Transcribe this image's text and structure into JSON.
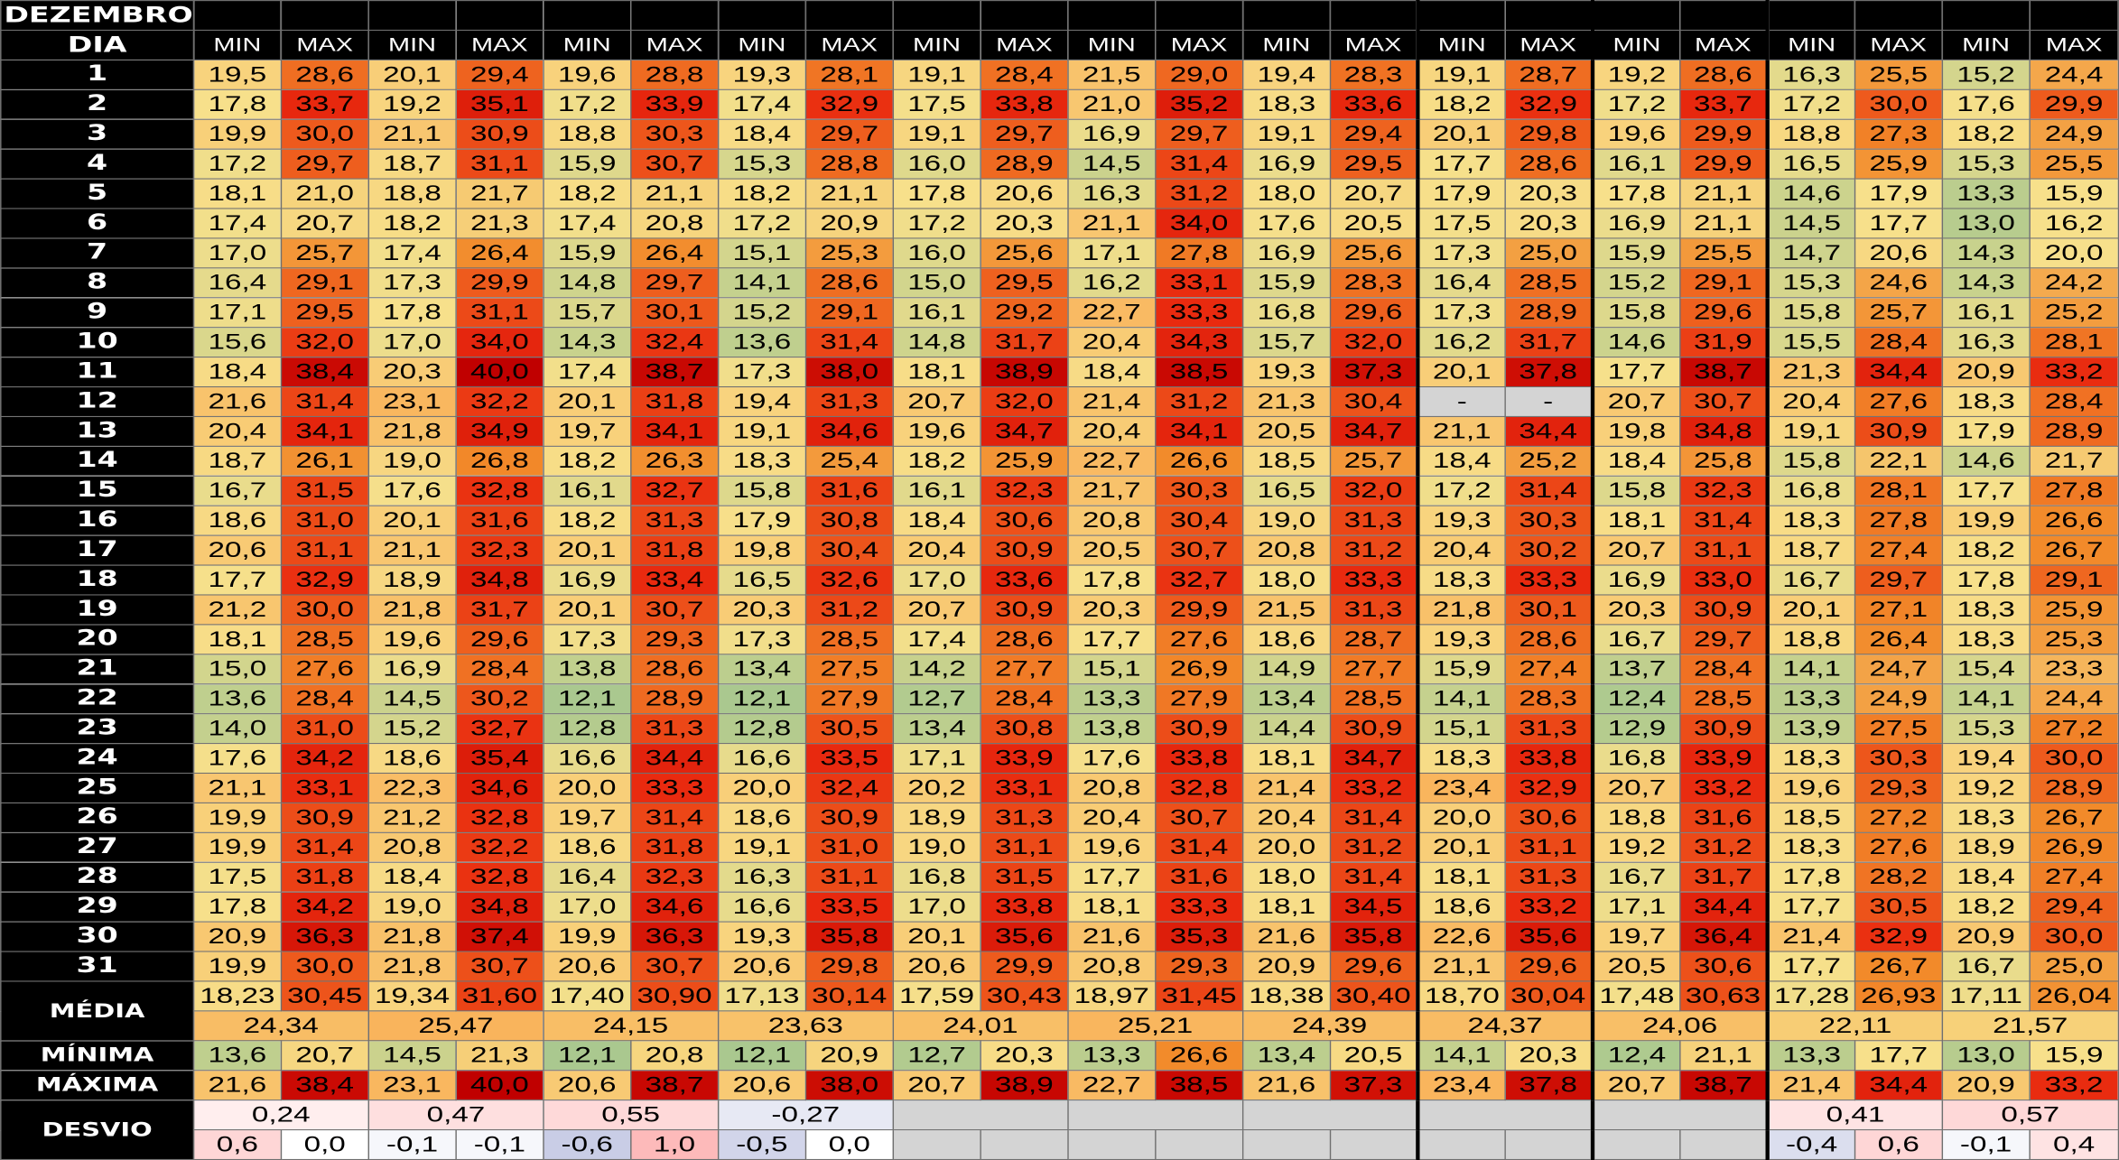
{
  "title": "DEZEMBRO",
  "day_label": "DIA",
  "min_label": "MIN",
  "max_label": "MAX",
  "media_label": "MÉDIA",
  "minima_label": "MÍNIMA",
  "maxima_label": "MÁXIMA",
  "desvio_label": "DESVIO",
  "year_count": 11,
  "rows": [
    {
      "day": "1",
      "values": [
        "19,5",
        "28,6",
        "20,1",
        "29,4",
        "19,6",
        "28,8",
        "19,3",
        "28,1",
        "19,1",
        "28,4",
        "21,5",
        "29,0",
        "19,4",
        "28,3",
        "19,1",
        "28,7",
        "19,2",
        "28,6",
        "16,3",
        "25,5",
        "15,2",
        "24,4"
      ]
    },
    {
      "day": "2",
      "values": [
        "17,8",
        "33,7",
        "19,2",
        "35,1",
        "17,2",
        "33,9",
        "17,4",
        "32,9",
        "17,5",
        "33,8",
        "21,0",
        "35,2",
        "18,3",
        "33,6",
        "18,2",
        "32,9",
        "17,2",
        "33,7",
        "17,2",
        "30,0",
        "17,6",
        "29,9"
      ]
    },
    {
      "day": "3",
      "values": [
        "19,9",
        "30,0",
        "21,1",
        "30,9",
        "18,8",
        "30,3",
        "18,4",
        "29,7",
        "19,1",
        "29,7",
        "16,9",
        "29,7",
        "19,1",
        "29,4",
        "20,1",
        "29,8",
        "19,6",
        "29,9",
        "18,8",
        "27,3",
        "18,2",
        "24,9"
      ]
    },
    {
      "day": "4",
      "values": [
        "17,2",
        "29,7",
        "18,7",
        "31,1",
        "15,9",
        "30,7",
        "15,3",
        "28,8",
        "16,0",
        "28,9",
        "14,5",
        "31,4",
        "16,9",
        "29,5",
        "17,7",
        "28,6",
        "16,1",
        "29,9",
        "16,5",
        "25,9",
        "15,3",
        "25,5"
      ]
    },
    {
      "day": "5",
      "values": [
        "18,1",
        "21,0",
        "18,8",
        "21,7",
        "18,2",
        "21,1",
        "18,2",
        "21,1",
        "17,8",
        "20,6",
        "16,3",
        "31,2",
        "18,0",
        "20,7",
        "17,9",
        "20,3",
        "17,8",
        "21,1",
        "14,6",
        "17,9",
        "13,3",
        "15,9"
      ]
    },
    {
      "day": "6",
      "values": [
        "17,4",
        "20,7",
        "18,2",
        "21,3",
        "17,4",
        "20,8",
        "17,2",
        "20,9",
        "17,2",
        "20,3",
        "21,1",
        "34,0",
        "17,6",
        "20,5",
        "17,5",
        "20,3",
        "16,9",
        "21,1",
        "14,5",
        "17,7",
        "13,0",
        "16,2"
      ]
    },
    {
      "day": "7",
      "values": [
        "17,0",
        "25,7",
        "17,4",
        "26,4",
        "15,9",
        "26,4",
        "15,1",
        "25,3",
        "16,0",
        "25,6",
        "17,1",
        "27,8",
        "16,9",
        "25,6",
        "17,3",
        "25,0",
        "15,9",
        "25,5",
        "14,7",
        "20,6",
        "14,3",
        "20,0"
      ]
    },
    {
      "day": "8",
      "values": [
        "16,4",
        "29,1",
        "17,3",
        "29,9",
        "14,8",
        "29,7",
        "14,1",
        "28,6",
        "15,0",
        "29,5",
        "16,2",
        "33,1",
        "15,9",
        "28,3",
        "16,4",
        "28,5",
        "15,2",
        "29,1",
        "15,3",
        "24,6",
        "14,3",
        "24,2"
      ]
    },
    {
      "day": "9",
      "values": [
        "17,1",
        "29,5",
        "17,8",
        "31,1",
        "15,7",
        "30,1",
        "15,2",
        "29,1",
        "16,1",
        "29,2",
        "22,7",
        "33,3",
        "16,8",
        "29,6",
        "17,3",
        "28,9",
        "15,8",
        "29,6",
        "15,8",
        "25,7",
        "16,1",
        "25,2"
      ]
    },
    {
      "day": "10",
      "values": [
        "15,6",
        "32,0",
        "17,0",
        "34,0",
        "14,3",
        "32,4",
        "13,6",
        "31,4",
        "14,8",
        "31,7",
        "20,4",
        "34,3",
        "15,7",
        "32,0",
        "16,2",
        "31,7",
        "14,6",
        "31,9",
        "15,5",
        "28,4",
        "16,3",
        "28,1"
      ]
    },
    {
      "day": "11",
      "values": [
        "18,4",
        "38,4",
        "20,3",
        "40,0",
        "17,4",
        "38,7",
        "17,3",
        "38,0",
        "18,1",
        "38,9",
        "18,4",
        "38,5",
        "19,3",
        "37,3",
        "20,1",
        "37,8",
        "17,7",
        "38,7",
        "21,3",
        "34,4",
        "20,9",
        "33,2"
      ]
    },
    {
      "day": "12",
      "values": [
        "21,6",
        "31,4",
        "23,1",
        "32,2",
        "20,1",
        "31,8",
        "19,4",
        "31,3",
        "20,7",
        "32,0",
        "21,4",
        "31,2",
        "21,3",
        "30,4",
        "-",
        "-",
        "20,7",
        "30,7",
        "20,4",
        "27,6",
        "18,3",
        "28,4"
      ]
    },
    {
      "day": "13",
      "values": [
        "20,4",
        "34,1",
        "21,8",
        "34,9",
        "19,7",
        "34,1",
        "19,1",
        "34,6",
        "19,6",
        "34,7",
        "20,4",
        "34,1",
        "20,5",
        "34,7",
        "21,1",
        "34,4",
        "19,8",
        "34,8",
        "19,1",
        "30,9",
        "17,9",
        "28,9"
      ]
    },
    {
      "day": "14",
      "values": [
        "18,7",
        "26,1",
        "19,0",
        "26,8",
        "18,2",
        "26,3",
        "18,3",
        "25,4",
        "18,2",
        "25,9",
        "22,7",
        "26,6",
        "18,5",
        "25,7",
        "18,4",
        "25,2",
        "18,4",
        "25,8",
        "15,8",
        "22,1",
        "14,6",
        "21,7"
      ]
    },
    {
      "day": "15",
      "values": [
        "16,7",
        "31,5",
        "17,6",
        "32,8",
        "16,1",
        "32,7",
        "15,8",
        "31,6",
        "16,1",
        "32,3",
        "21,7",
        "30,3",
        "16,5",
        "32,0",
        "17,2",
        "31,4",
        "15,8",
        "32,3",
        "16,8",
        "28,1",
        "17,7",
        "27,8"
      ]
    },
    {
      "day": "16",
      "values": [
        "18,6",
        "31,0",
        "20,1",
        "31,6",
        "18,2",
        "31,3",
        "17,9",
        "30,8",
        "18,4",
        "30,6",
        "20,8",
        "30,4",
        "19,0",
        "31,3",
        "19,3",
        "30,3",
        "18,1",
        "31,4",
        "18,3",
        "27,8",
        "19,9",
        "26,6"
      ]
    },
    {
      "day": "17",
      "values": [
        "20,6",
        "31,1",
        "21,1",
        "32,3",
        "20,1",
        "31,8",
        "19,8",
        "30,4",
        "20,4",
        "30,9",
        "20,5",
        "30,7",
        "20,8",
        "31,2",
        "20,4",
        "30,2",
        "20,7",
        "31,1",
        "18,7",
        "27,4",
        "18,2",
        "26,7"
      ]
    },
    {
      "day": "18",
      "values": [
        "17,7",
        "32,9",
        "18,9",
        "34,8",
        "16,9",
        "33,4",
        "16,5",
        "32,6",
        "17,0",
        "33,6",
        "17,8",
        "32,7",
        "18,0",
        "33,3",
        "18,3",
        "33,3",
        "16,9",
        "33,0",
        "16,7",
        "29,7",
        "17,8",
        "29,1"
      ]
    },
    {
      "day": "19",
      "values": [
        "21,2",
        "30,0",
        "21,8",
        "31,7",
        "20,1",
        "30,7",
        "20,3",
        "31,2",
        "20,7",
        "30,9",
        "20,3",
        "29,9",
        "21,5",
        "31,3",
        "21,8",
        "30,1",
        "20,3",
        "30,9",
        "20,1",
        "27,1",
        "18,3",
        "25,9"
      ]
    },
    {
      "day": "20",
      "values": [
        "18,1",
        "28,5",
        "19,6",
        "29,6",
        "17,3",
        "29,3",
        "17,3",
        "28,5",
        "17,4",
        "28,6",
        "17,7",
        "27,6",
        "18,6",
        "28,7",
        "19,3",
        "28,6",
        "16,7",
        "29,7",
        "18,8",
        "26,4",
        "18,3",
        "25,3"
      ]
    },
    {
      "day": "21",
      "values": [
        "15,0",
        "27,6",
        "16,9",
        "28,4",
        "13,8",
        "28,6",
        "13,4",
        "27,5",
        "14,2",
        "27,7",
        "15,1",
        "26,9",
        "14,9",
        "27,7",
        "15,9",
        "27,4",
        "13,7",
        "28,4",
        "14,1",
        "24,7",
        "15,4",
        "23,3"
      ]
    },
    {
      "day": "22",
      "values": [
        "13,6",
        "28,4",
        "14,5",
        "30,2",
        "12,1",
        "28,9",
        "12,1",
        "27,9",
        "12,7",
        "28,4",
        "13,3",
        "27,9",
        "13,4",
        "28,5",
        "14,1",
        "28,3",
        "12,4",
        "28,5",
        "13,3",
        "24,9",
        "14,1",
        "24,4"
      ]
    },
    {
      "day": "23",
      "values": [
        "14,0",
        "31,0",
        "15,2",
        "32,7",
        "12,8",
        "31,3",
        "12,8",
        "30,5",
        "13,4",
        "30,8",
        "13,8",
        "30,9",
        "14,4",
        "30,9",
        "15,1",
        "31,3",
        "12,9",
        "30,9",
        "13,9",
        "27,5",
        "15,3",
        "27,2"
      ]
    },
    {
      "day": "24",
      "values": [
        "17,6",
        "34,2",
        "18,6",
        "35,4",
        "16,6",
        "34,4",
        "16,6",
        "33,5",
        "17,1",
        "33,9",
        "17,6",
        "33,8",
        "18,1",
        "34,7",
        "18,3",
        "33,8",
        "16,8",
        "33,9",
        "18,3",
        "30,3",
        "19,4",
        "30,0"
      ]
    },
    {
      "day": "25",
      "values": [
        "21,1",
        "33,1",
        "22,3",
        "34,6",
        "20,0",
        "33,3",
        "20,0",
        "32,4",
        "20,2",
        "33,1",
        "20,8",
        "32,8",
        "21,4",
        "33,2",
        "23,4",
        "32,9",
        "20,7",
        "33,2",
        "19,6",
        "29,3",
        "19,2",
        "28,9"
      ]
    },
    {
      "day": "26",
      "values": [
        "19,9",
        "30,9",
        "21,2",
        "32,8",
        "19,7",
        "31,4",
        "18,6",
        "30,9",
        "18,9",
        "31,3",
        "20,4",
        "30,7",
        "20,4",
        "31,4",
        "20,0",
        "30,6",
        "18,8",
        "31,6",
        "18,5",
        "27,2",
        "18,3",
        "26,7"
      ]
    },
    {
      "day": "27",
      "values": [
        "19,9",
        "31,4",
        "20,8",
        "32,2",
        "18,6",
        "31,8",
        "19,1",
        "31,0",
        "19,0",
        "31,1",
        "19,6",
        "31,4",
        "20,0",
        "31,2",
        "20,1",
        "31,1",
        "19,2",
        "31,2",
        "18,3",
        "27,6",
        "18,9",
        "26,9"
      ]
    },
    {
      "day": "28",
      "values": [
        "17,5",
        "31,8",
        "18,4",
        "32,8",
        "16,4",
        "32,3",
        "16,3",
        "31,1",
        "16,8",
        "31,5",
        "17,7",
        "31,6",
        "18,0",
        "31,4",
        "18,1",
        "31,3",
        "16,7",
        "31,7",
        "17,8",
        "28,2",
        "18,4",
        "27,4"
      ]
    },
    {
      "day": "29",
      "values": [
        "17,8",
        "34,2",
        "19,0",
        "34,8",
        "17,0",
        "34,6",
        "16,6",
        "33,5",
        "17,0",
        "33,8",
        "18,1",
        "33,3",
        "18,1",
        "34,5",
        "18,6",
        "33,2",
        "17,1",
        "34,4",
        "17,7",
        "30,5",
        "18,2",
        "29,4"
      ]
    },
    {
      "day": "30",
      "values": [
        "20,9",
        "36,3",
        "21,8",
        "37,4",
        "19,9",
        "36,3",
        "19,3",
        "35,8",
        "20,1",
        "35,6",
        "21,6",
        "35,3",
        "21,6",
        "35,8",
        "22,6",
        "35,6",
        "19,7",
        "36,4",
        "21,4",
        "32,9",
        "20,9",
        "30,0"
      ]
    },
    {
      "day": "31",
      "values": [
        "19,9",
        "30,0",
        "21,8",
        "30,7",
        "20,6",
        "30,7",
        "20,6",
        "29,8",
        "20,6",
        "29,9",
        "20,8",
        "29,3",
        "20,9",
        "29,6",
        "21,1",
        "29,6",
        "20,5",
        "30,6",
        "17,7",
        "26,7",
        "16,7",
        "25,0"
      ]
    }
  ],
  "media_values": [
    "18,23",
    "30,45",
    "19,34",
    "31,60",
    "17,40",
    "30,90",
    "17,13",
    "30,14",
    "17,59",
    "30,43",
    "18,97",
    "31,45",
    "18,38",
    "30,40",
    "18,70",
    "30,04",
    "17,48",
    "30,63",
    "17,28",
    "26,93",
    "17,11",
    "26,04"
  ],
  "media_combined": [
    "24,34",
    "25,47",
    "24,15",
    "23,63",
    "24,01",
    "25,21",
    "24,39",
    "24,37",
    "24,06",
    "22,11",
    "21,57"
  ],
  "minima_values": [
    "13,6",
    "20,7",
    "14,5",
    "21,3",
    "12,1",
    "20,8",
    "12,1",
    "20,9",
    "12,7",
    "20,3",
    "13,3",
    "26,6",
    "13,4",
    "20,5",
    "14,1",
    "20,3",
    "12,4",
    "21,1",
    "13,3",
    "17,7",
    "13,0",
    "15,9"
  ],
  "maxima_values": [
    "21,6",
    "38,4",
    "23,1",
    "40,0",
    "20,6",
    "38,7",
    "20,6",
    "38,0",
    "20,7",
    "38,9",
    "22,7",
    "38,5",
    "21,6",
    "37,3",
    "23,4",
    "37,8",
    "20,7",
    "38,7",
    "21,4",
    "34,4",
    "20,9",
    "33,2"
  ],
  "desvio_combined": [
    "0,24",
    "0,47",
    "0,55",
    "-0,27",
    "",
    "",
    "",
    "",
    "",
    "0,41",
    "0,57"
  ],
  "desvio_values": [
    "0,6",
    "0,0",
    "-0,1",
    "-0,1",
    "-0,6",
    "1,0",
    "-0,5",
    "0,0",
    "",
    "",
    "",
    "",
    "",
    "",
    "",
    "",
    "",
    "",
    "-0,4",
    "0,6",
    "-0,1",
    "0,4"
  ],
  "colors": {
    "label_bg": "#000000",
    "label_text": "#ffffff",
    "no_data": "#d4d4d4",
    "scale_min": [
      "#a9c88f",
      "#f7e08b",
      "#f9b45c"
    ],
    "scale_max": [
      "#f7e08b",
      "#f28a2a",
      "#e92a0f",
      "#c00000"
    ],
    "desvio_neg": "#c9cde6",
    "desvio_pos": "#fdbaba"
  }
}
